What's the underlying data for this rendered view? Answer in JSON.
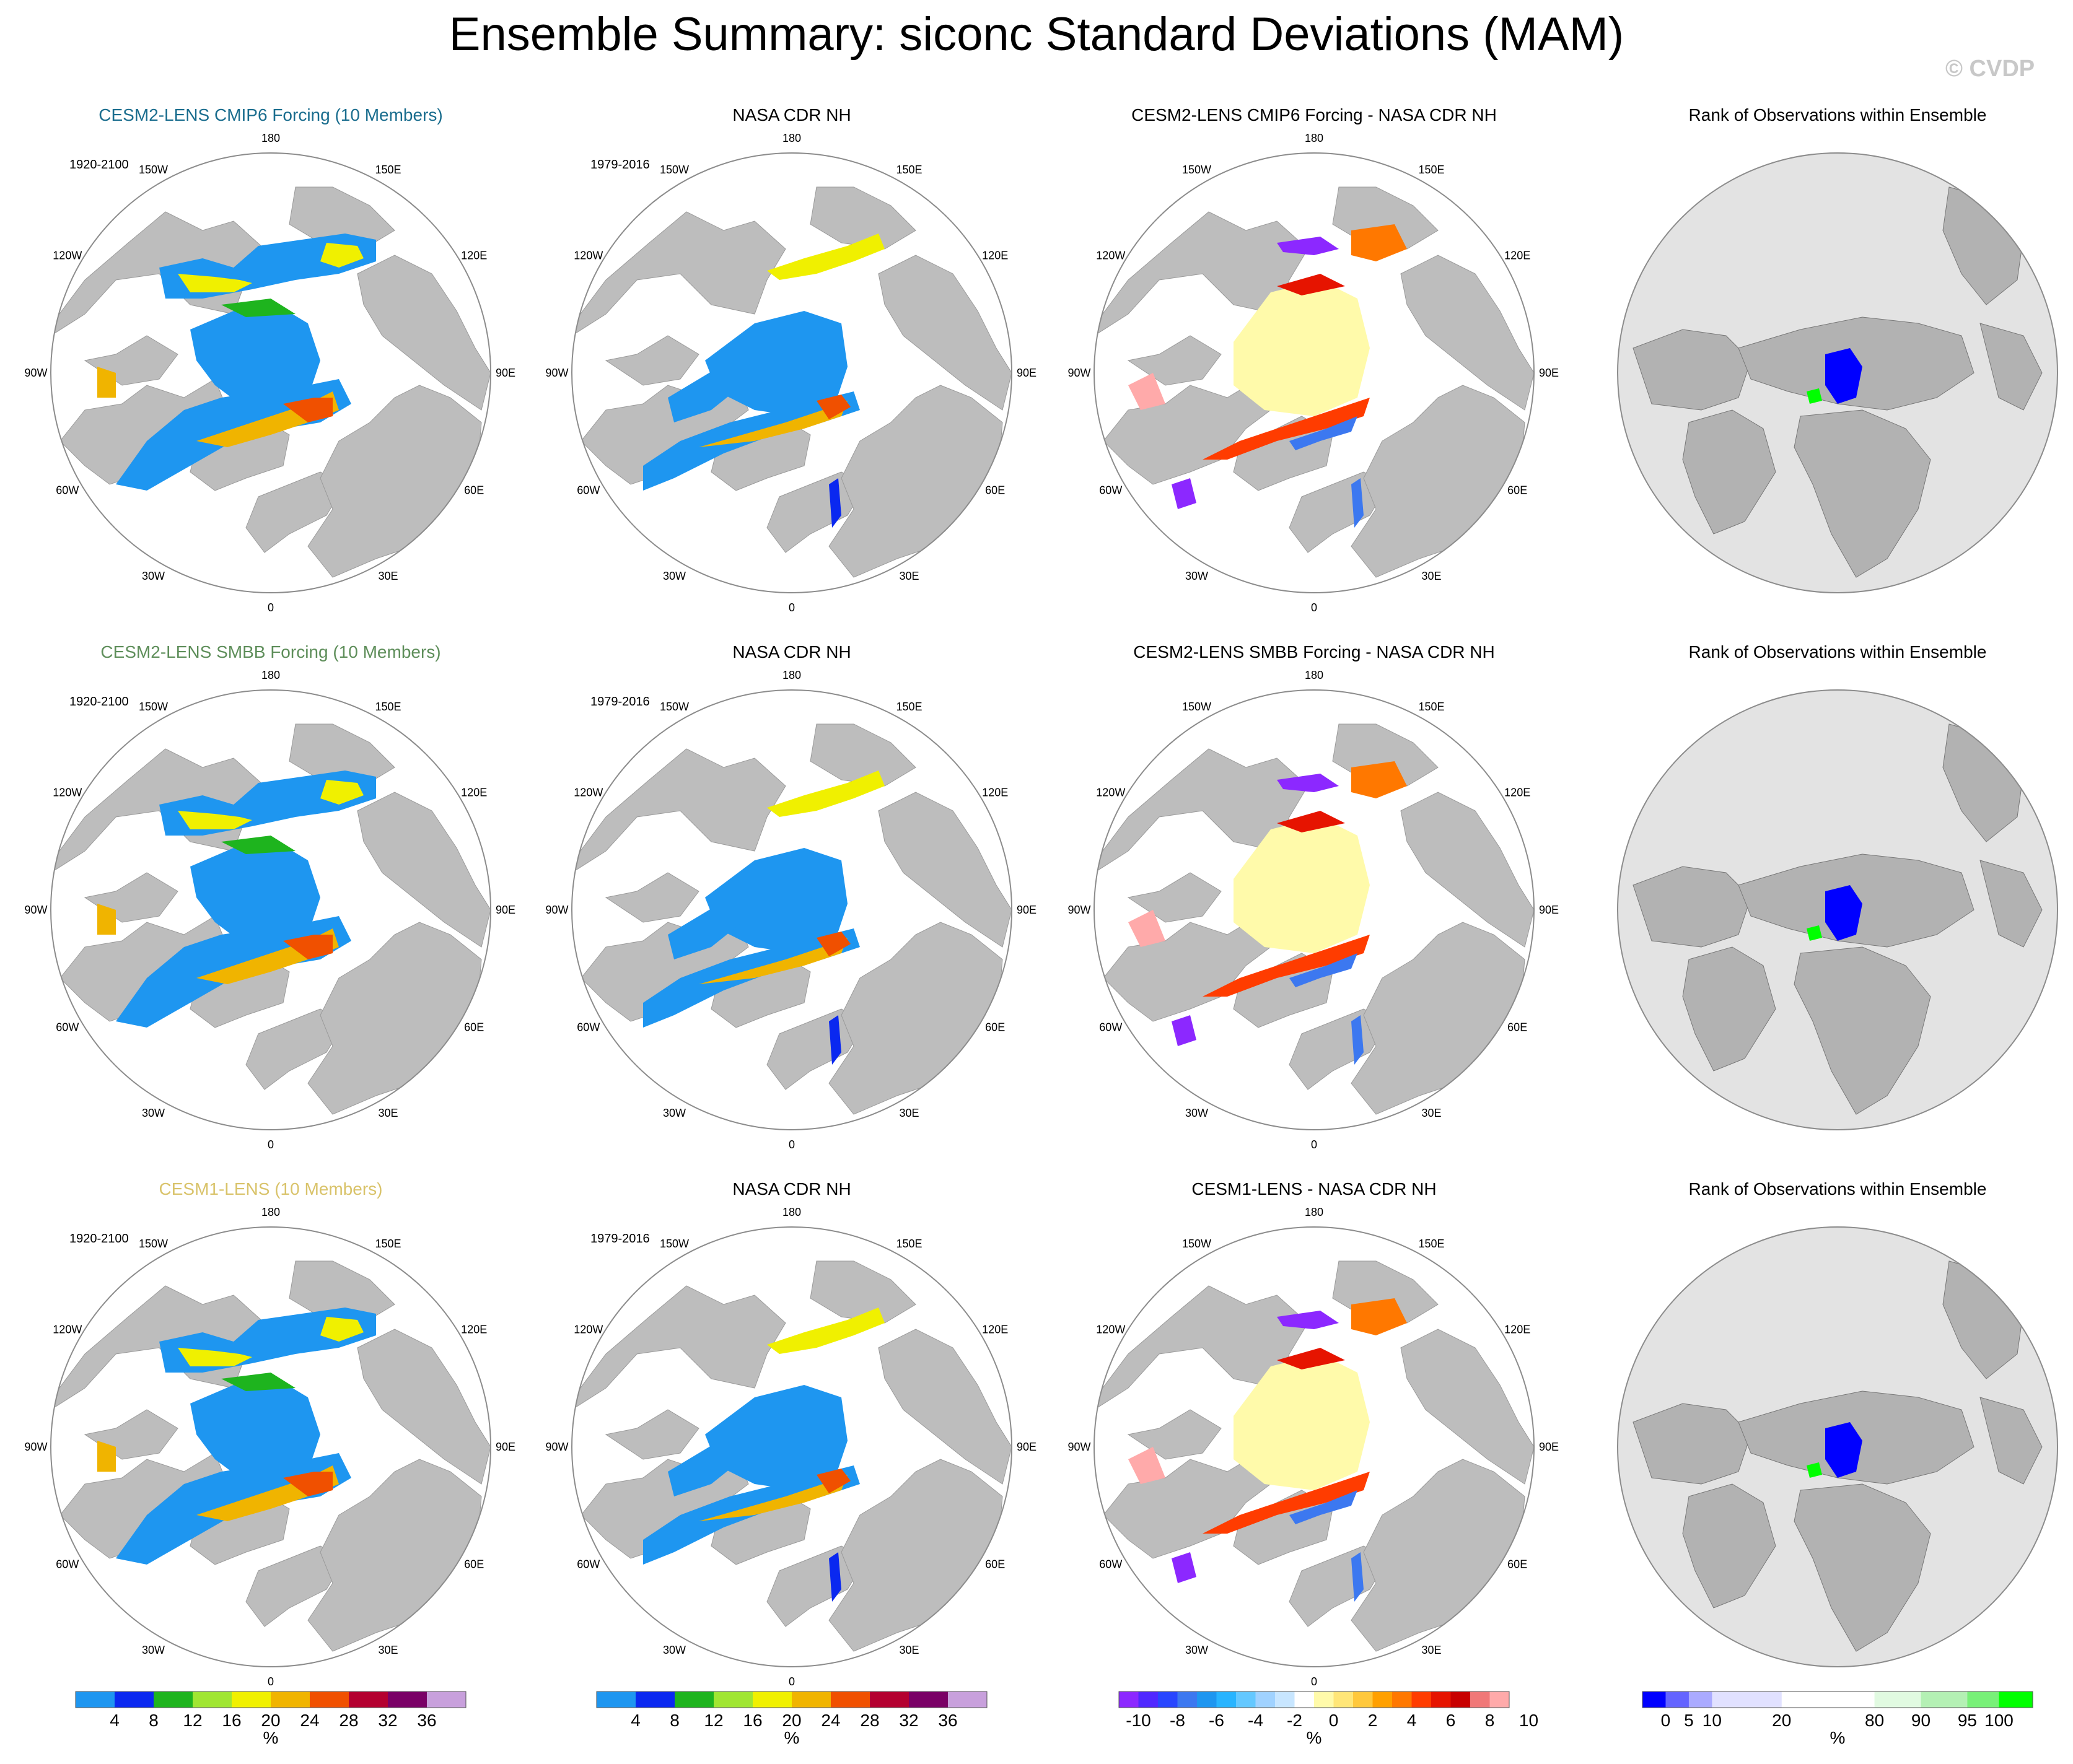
{
  "title": "Ensemble Summary: siconc Standard Deviations (MAM)",
  "watermark": "© CVDP",
  "lon_labels": [
    "180",
    "150E",
    "120E",
    "90E",
    "60E",
    "30E",
    "0",
    "30W",
    "60W",
    "90W",
    "120W",
    "150W"
  ],
  "colors": {
    "ocean_bg": "#ffffff",
    "land": "#bdbdbd",
    "rank_bg": "#e3e3e3",
    "rank_land": "#b2b2b2",
    "outline": "#8c8c8c"
  },
  "rows": [
    {
      "ensemble": {
        "title": "CESM2-LENS CMIP6 Forcing (10 Members)",
        "title_color": "#1a6d8e",
        "years": "1920-2100"
      },
      "obs": {
        "title": "NASA CDR NH",
        "years": "1979-2016"
      },
      "diff": {
        "title": "CESM2-LENS CMIP6 Forcing - NASA CDR NH"
      },
      "rank": {
        "title": "Rank of Observations within Ensemble"
      }
    },
    {
      "ensemble": {
        "title": "CESM2-LENS SMBB Forcing (10 Members)",
        "title_color": "#5e8e5a",
        "years": "1920-2100"
      },
      "obs": {
        "title": "NASA CDR NH",
        "years": "1979-2016"
      },
      "diff": {
        "title": "CESM2-LENS SMBB Forcing - NASA CDR NH"
      },
      "rank": {
        "title": "Rank of Observations within Ensemble"
      }
    },
    {
      "ensemble": {
        "title": "CESM1-LENS (10 Members)",
        "title_color": "#d9c36a",
        "years": "1920-2100"
      },
      "obs": {
        "title": "NASA CDR NH",
        "years": "1979-2016"
      },
      "diff": {
        "title": "CESM1-LENS - NASA CDR NH"
      },
      "rank": {
        "title": "Rank of Observations within Ensemble"
      }
    }
  ],
  "colorbars": {
    "stddev": {
      "unit": "%",
      "colors": [
        "#1e96f0",
        "#0a28f0",
        "#1eb41e",
        "#a0e632",
        "#f0f000",
        "#f0b400",
        "#f05000",
        "#b40030",
        "#7a0066",
        "#c8a0dc"
      ],
      "tick_labels": [
        "4",
        "8",
        "12",
        "16",
        "20",
        "24",
        "28",
        "32",
        "36"
      ]
    },
    "diff": {
      "unit": "%",
      "colors": [
        "#8c28ff",
        "#5028ff",
        "#2846ff",
        "#3c78f0",
        "#1e96f0",
        "#28b4ff",
        "#64c8ff",
        "#a0d2ff",
        "#c8e6ff",
        "#ffffff",
        "#fffaaa",
        "#ffe678",
        "#ffc83c",
        "#ffa000",
        "#ff7800",
        "#ff3c00",
        "#e61400",
        "#c80000",
        "#f07878",
        "#ffaaaa"
      ],
      "tick_labels": [
        "-10",
        "-8",
        "-6",
        "-4",
        "-2",
        "0",
        "2",
        "4",
        "6",
        "8",
        "10"
      ]
    },
    "rank": {
      "unit": "%",
      "colors": [
        "#0000ff",
        "#6464ff",
        "#aaaaff",
        "#e1e1ff",
        "#ffffff",
        "#e1fae1",
        "#b4f0b4",
        "#78f078",
        "#00ff00"
      ],
      "tick_labels": [
        "0",
        "5",
        "10",
        "20",
        "80",
        "90",
        "95",
        "100"
      ]
    }
  },
  "chart_data": [
    {
      "type": "heatmap",
      "title": "CESM2-LENS CMIP6 Forcing (10 Members)",
      "variable": "siconc standard deviation",
      "season": "MAM",
      "units": "%",
      "period": "1920-2100",
      "projection": "polar stereographic NH"
    },
    {
      "type": "heatmap",
      "title": "NASA CDR NH",
      "variable": "siconc standard deviation",
      "season": "MAM",
      "units": "%",
      "period": "1979-2016",
      "projection": "polar stereographic NH"
    },
    {
      "type": "heatmap",
      "title": "CESM2-LENS CMIP6 Forcing - NASA CDR NH",
      "variable": "siconc standard deviation difference",
      "units": "%",
      "range": [
        -10,
        10
      ]
    },
    {
      "type": "heatmap",
      "title": "Rank of Observations within Ensemble",
      "units": "%",
      "range": [
        0,
        100
      ]
    },
    {
      "type": "heatmap",
      "title": "CESM2-LENS SMBB Forcing (10 Members)",
      "variable": "siconc standard deviation",
      "season": "MAM",
      "units": "%",
      "period": "1920-2100"
    },
    {
      "type": "heatmap",
      "title": "NASA CDR NH",
      "period": "1979-2016",
      "units": "%"
    },
    {
      "type": "heatmap",
      "title": "CESM2-LENS SMBB Forcing - NASA CDR NH",
      "units": "%",
      "range": [
        -10,
        10
      ]
    },
    {
      "type": "heatmap",
      "title": "Rank of Observations within Ensemble",
      "units": "%",
      "range": [
        0,
        100
      ]
    },
    {
      "type": "heatmap",
      "title": "CESM1-LENS (10 Members)",
      "variable": "siconc standard deviation",
      "season": "MAM",
      "units": "%",
      "period": "1920-2100"
    },
    {
      "type": "heatmap",
      "title": "NASA CDR NH",
      "period": "1979-2016",
      "units": "%"
    },
    {
      "type": "heatmap",
      "title": "CESM1-LENS - NASA CDR NH",
      "units": "%",
      "range": [
        -10,
        10
      ]
    },
    {
      "type": "heatmap",
      "title": "Rank of Observations within Ensemble",
      "units": "%",
      "range": [
        0,
        100
      ]
    }
  ]
}
